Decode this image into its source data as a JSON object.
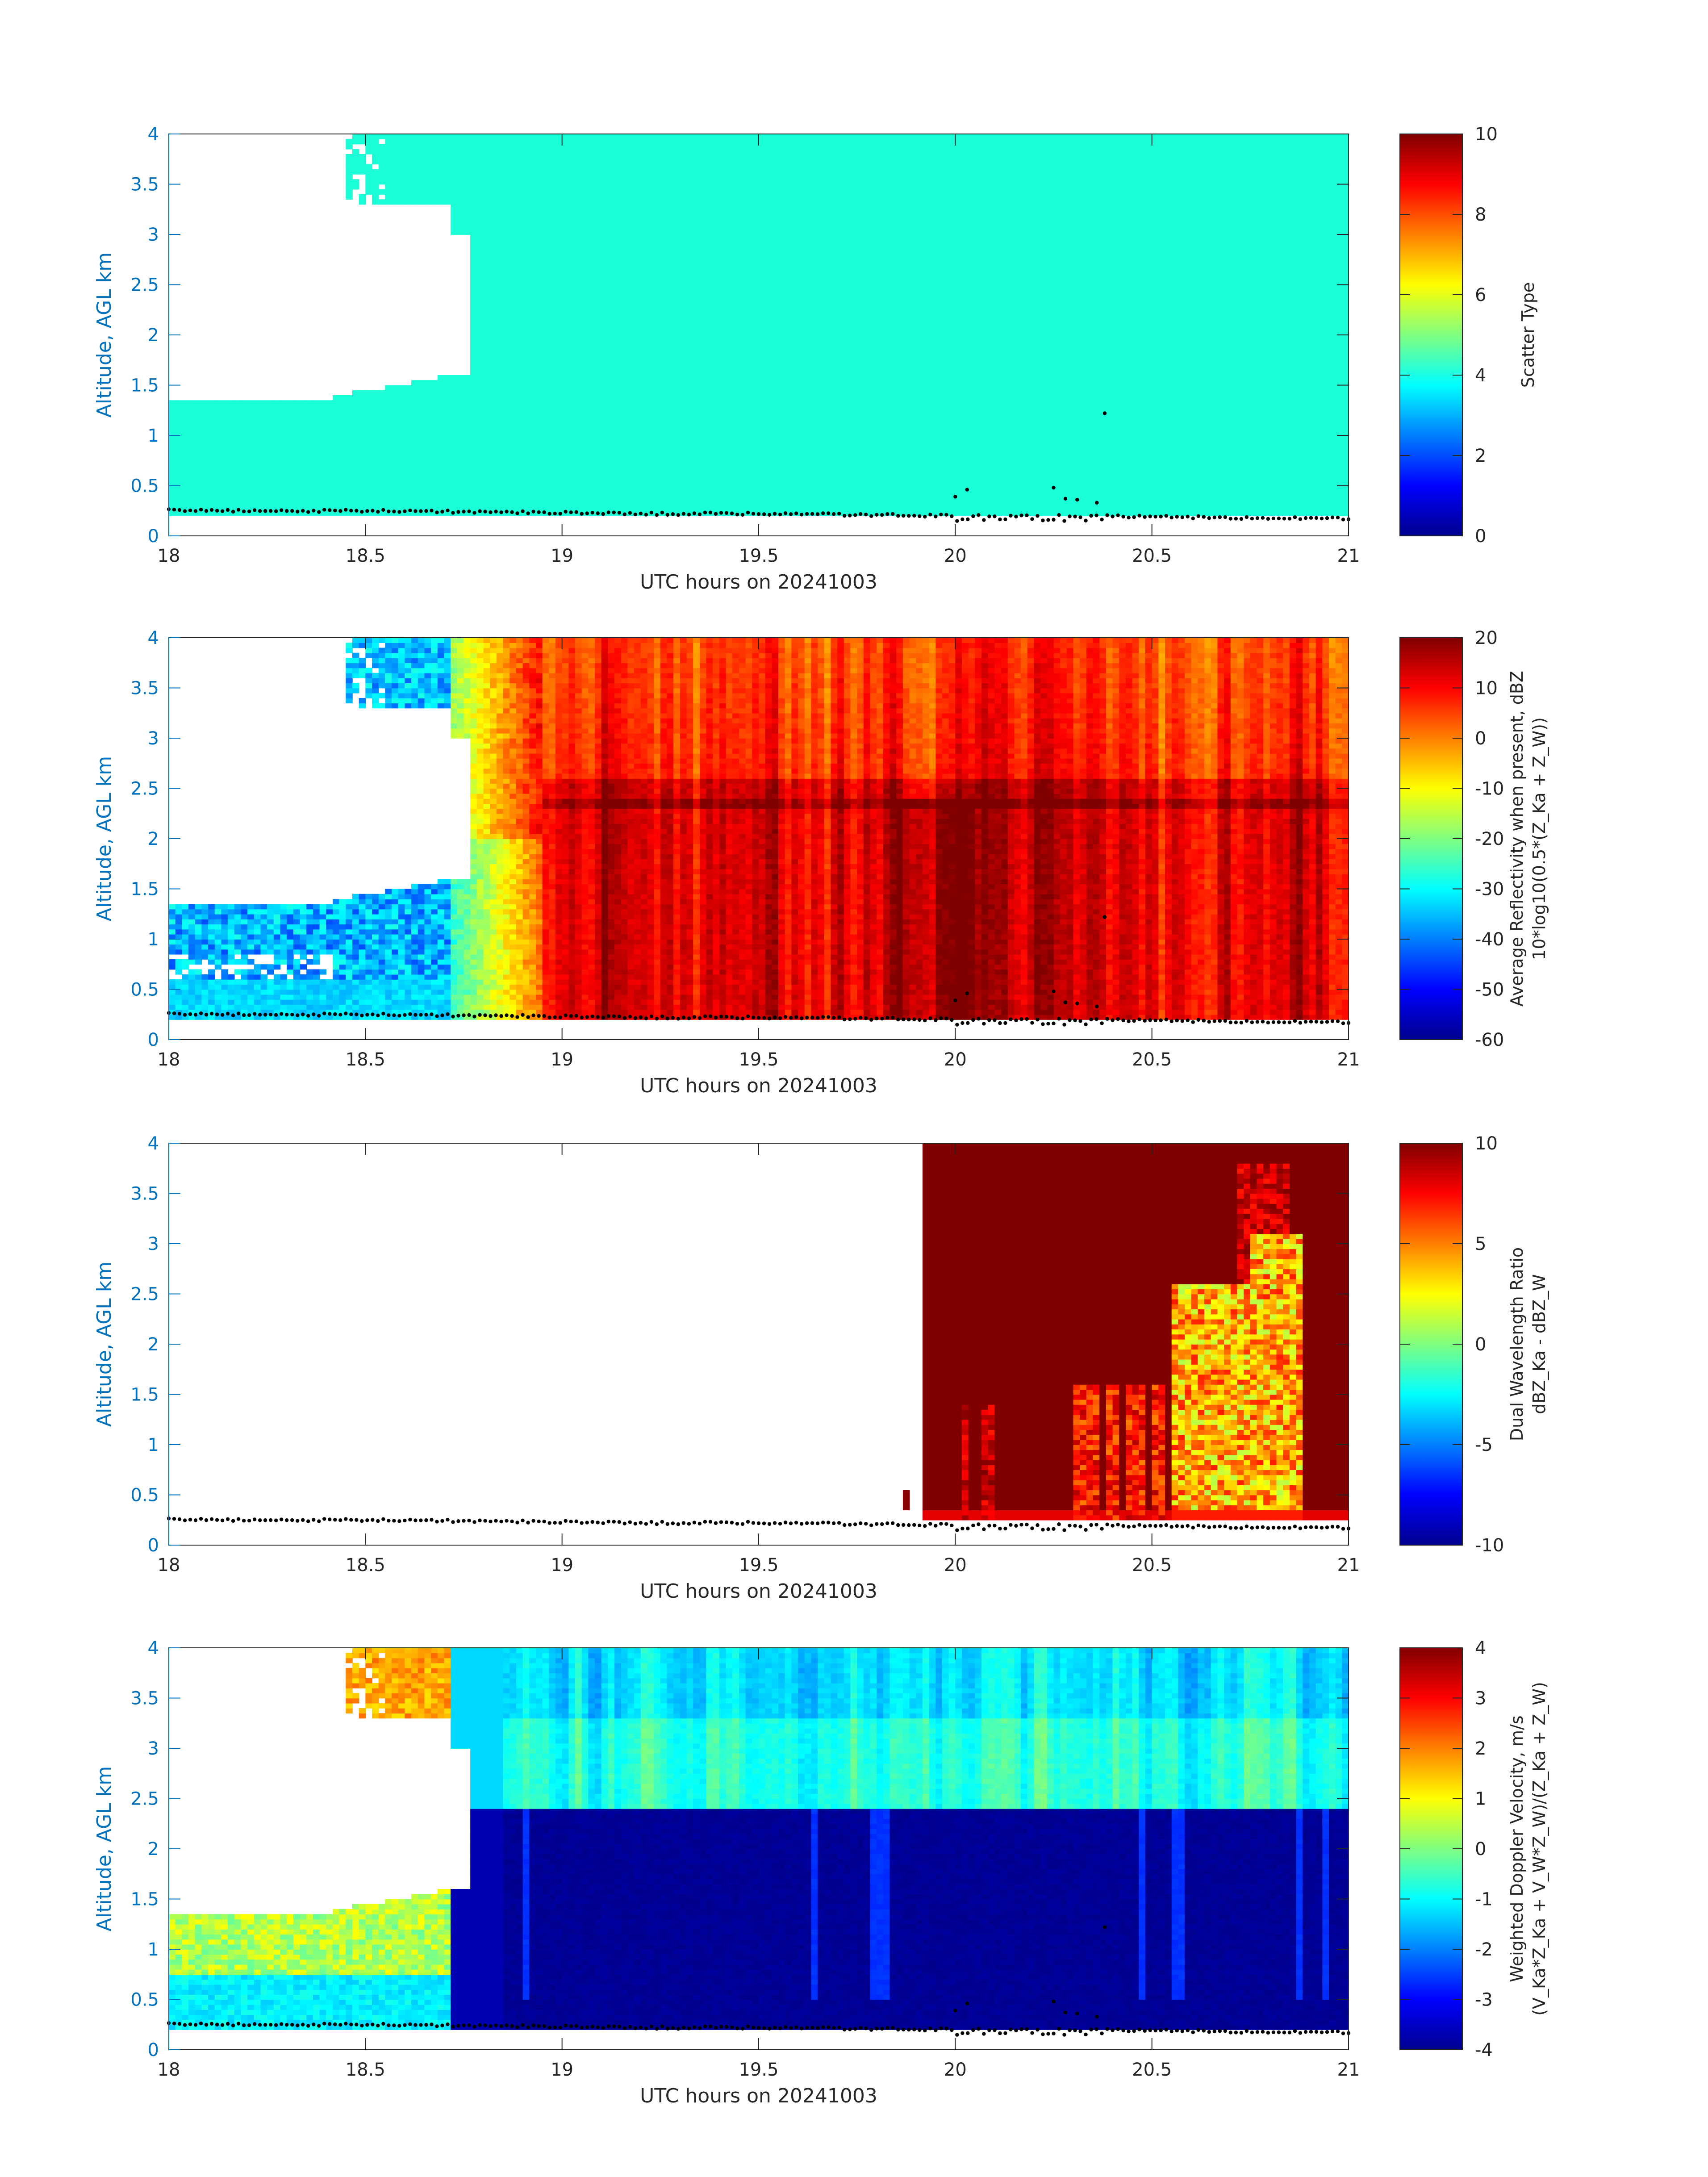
{
  "chart_data": [
    {
      "type": "heatmap",
      "xlabel": "UTC hours on 20241003",
      "ylabel": "Altitude, AGL km",
      "xlim": [
        18,
        21
      ],
      "ylim": [
        0,
        4
      ],
      "xticks": [
        "18",
        "18.5",
        "19",
        "19.5",
        "20",
        "20.5",
        "21"
      ],
      "yticks": [
        "0",
        "0.5",
        "1",
        "1.5",
        "2",
        "2.5",
        "3",
        "3.5",
        "4"
      ],
      "colorbar": {
        "label_lines": [
          "Scatter Type"
        ],
        "limits": [
          0,
          10
        ],
        "ticks": [
          "0",
          "2",
          "4",
          "6",
          "8",
          "10"
        ]
      },
      "colormap": "jet",
      "description_values": {
        "dominant_value": 4
      }
    },
    {
      "type": "heatmap",
      "xlabel": "UTC hours on 20241003",
      "ylabel": "Altitude, AGL km",
      "xlim": [
        18,
        21
      ],
      "ylim": [
        0,
        4
      ],
      "xticks": [
        "18",
        "18.5",
        "19",
        "19.5",
        "20",
        "20.5",
        "21"
      ],
      "yticks": [
        "0",
        "0.5",
        "1",
        "1.5",
        "2",
        "2.5",
        "3",
        "3.5",
        "4"
      ],
      "colorbar": {
        "label_lines": [
          "Average Reflectivity when present, dBZ",
          "10*log10(0.5*(Z_Ka + Z_W))"
        ],
        "limits": [
          -60,
          20
        ],
        "ticks": [
          "-60",
          "-50",
          "-40",
          "-30",
          "-20",
          "-10",
          "0",
          "10",
          "20"
        ]
      },
      "colormap": "jet"
    },
    {
      "type": "heatmap",
      "xlabel": "UTC hours on 20241003",
      "ylabel": "Altitude, AGL km",
      "xlim": [
        18,
        21
      ],
      "ylim": [
        0,
        4
      ],
      "xticks": [
        "18",
        "18.5",
        "19",
        "19.5",
        "20",
        "20.5",
        "21"
      ],
      "yticks": [
        "0",
        "0.5",
        "1",
        "1.5",
        "2",
        "2.5",
        "3",
        "3.5",
        "4"
      ],
      "colorbar": {
        "label_lines": [
          "Dual Wavelength Ratio",
          "dBZ_Ka - dBZ_W"
        ],
        "limits": [
          -10,
          10
        ],
        "ticks": [
          "-10",
          "-5",
          "0",
          "5",
          "10"
        ]
      },
      "colormap": "jet"
    },
    {
      "type": "heatmap",
      "xlabel": "UTC hours on 20241003",
      "ylabel": "Altitude, AGL km",
      "xlim": [
        18,
        21
      ],
      "ylim": [
        0,
        4
      ],
      "xticks": [
        "18",
        "18.5",
        "19",
        "19.5",
        "20",
        "20.5",
        "21"
      ],
      "yticks": [
        "0",
        "0.5",
        "1",
        "1.5",
        "2",
        "2.5",
        "3",
        "3.5",
        "4"
      ],
      "colorbar": {
        "label_lines": [
          "Weighted Doppler Velocity, m/s",
          "(V_Ka*Z_Ka + V_W*Z_W)/(Z_Ka + Z_W)"
        ],
        "limits": [
          -4,
          4
        ],
        "ticks": [
          "-4",
          "-3",
          "-2",
          "-1",
          "0",
          "1",
          "2",
          "3",
          "4"
        ]
      },
      "colormap": "jet"
    }
  ],
  "cloud_base_dots": {
    "x": [
      18.0,
      18.25,
      18.5,
      18.75,
      19.0,
      19.25,
      19.5,
      19.75,
      20.0,
      20.25,
      20.5,
      20.75,
      21.0
    ],
    "y": [
      0.26,
      0.25,
      0.25,
      0.24,
      0.23,
      0.22,
      0.22,
      0.21,
      0.2,
      0.2,
      0.19,
      0.18,
      0.17
    ]
  }
}
